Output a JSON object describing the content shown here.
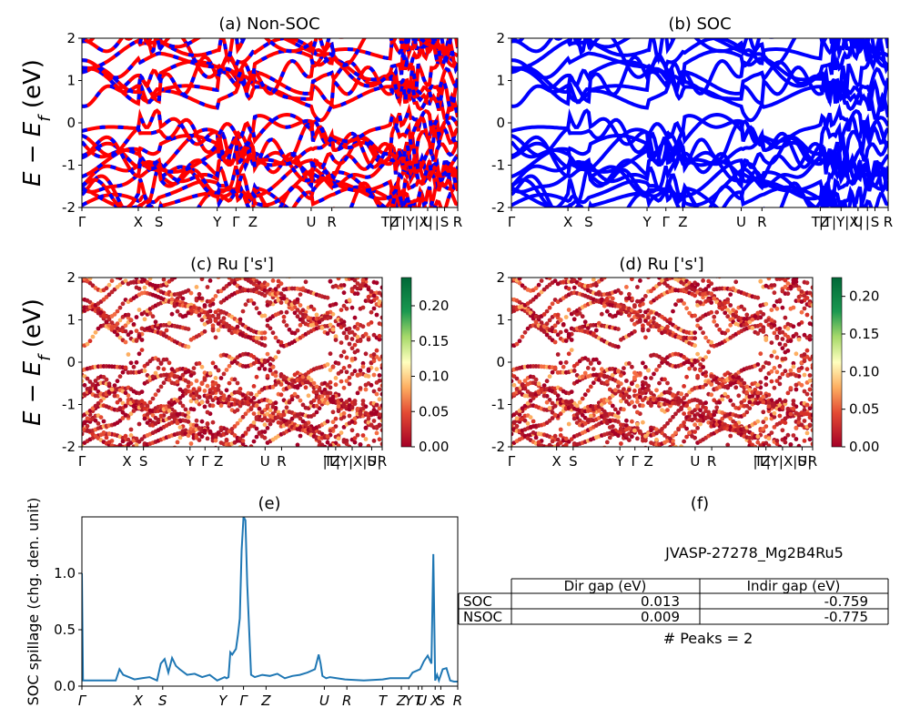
{
  "figure": {
    "ylabel_bands": "E − E_f (eV)",
    "ylabel_spillage": "SOC spillage (chg. den. unit)",
    "kpath_labels": [
      "Γ",
      "X",
      "S",
      "Y",
      "Γ",
      "Z",
      "U",
      "R",
      "T",
      "Z",
      "Y",
      "T",
      "U",
      "X",
      "S",
      "R"
    ],
    "kpath_positions": [
      0.0,
      0.15,
      0.205,
      0.36,
      0.41,
      0.455,
      0.61,
      0.665,
      0.82,
      0.845,
      0.865,
      0.875,
      0.89,
      0.925,
      0.945,
      1.0
    ],
    "top_tick_text": [
      "Γ",
      "X",
      "S",
      "Y",
      "Γ",
      "Z",
      "U",
      "R",
      "TZ",
      "|T|Y|X|",
      "U",
      "|",
      "S",
      "R"
    ],
    "top_tick_fracs": [
      0.0,
      0.15,
      0.205,
      0.36,
      0.41,
      0.455,
      0.61,
      0.665,
      0.82,
      0.875,
      0.92,
      0.945,
      0.965,
      1.0
    ],
    "mid_tick_text": [
      "Γ",
      "X",
      "S",
      "Y",
      "Γ",
      "Z",
      "U",
      "R",
      "T",
      "Z",
      "|T|Y|X|U|",
      "S",
      "R"
    ],
    "mid_tick_fracs": [
      0.0,
      0.15,
      0.205,
      0.36,
      0.41,
      0.455,
      0.61,
      0.665,
      0.82,
      0.845,
      0.9,
      0.965,
      1.0
    ],
    "bottom_tick_text": [
      "Γ",
      "X",
      "S",
      "Y",
      "Γ",
      "Z",
      "U",
      "R",
      "T",
      "Z",
      "Y",
      "T",
      "U",
      "X",
      "S",
      "R"
    ],
    "bottom_tick_fracs": [
      0.0,
      0.15,
      0.215,
      0.375,
      0.43,
      0.49,
      0.645,
      0.705,
      0.8,
      0.85,
      0.87,
      0.895,
      0.905,
      0.94,
      0.955,
      1.0
    ]
  },
  "chart_data": [
    {
      "id": "a",
      "type": "line",
      "title": "(a) Non-SOC",
      "ylim": [
        -2,
        2
      ],
      "yticks": [
        -2,
        -1,
        0,
        1,
        2
      ],
      "series_colors": [
        "#ff0000",
        "#0000ff"
      ],
      "dashed_overlay": true
    },
    {
      "id": "b",
      "type": "line",
      "title": "(b) SOC",
      "ylim": [
        -2,
        2
      ],
      "yticks": [
        -2,
        -1,
        0,
        1,
        2
      ],
      "series_colors": [
        "#0000ff"
      ]
    },
    {
      "id": "c",
      "type": "scatter",
      "title": "(c)  Ru ['s']",
      "ylim": [
        -2,
        2
      ],
      "yticks": [
        -2,
        -1,
        0,
        1,
        2
      ],
      "colorbar": {
        "min": 0.0,
        "max": 0.24,
        "ticks": [
          "0.00",
          "0.05",
          "0.10",
          "0.15",
          "0.20"
        ],
        "tick_values": [
          0.0,
          0.05,
          0.1,
          0.15,
          0.2
        ],
        "colormap": "RdYlGn"
      }
    },
    {
      "id": "d",
      "type": "scatter",
      "title": "(d) Ru ['s']",
      "ylim": [
        -2,
        2
      ],
      "yticks": [
        -2,
        -1,
        0,
        1,
        2
      ],
      "colorbar": {
        "min": 0.0,
        "max": 0.225,
        "ticks": [
          "0.00",
          "0.05",
          "0.10",
          "0.15",
          "0.20"
        ],
        "tick_values": [
          0.0,
          0.05,
          0.1,
          0.15,
          0.2
        ],
        "colormap": "RdYlGn"
      }
    },
    {
      "id": "e",
      "type": "line",
      "title": "(e)",
      "ylabel": "SOC spillage (chg. den. unit)",
      "ylim": [
        0.0,
        1.5
      ],
      "yticks": [
        "0.0",
        "0.5",
        "1.0"
      ],
      "ytick_values": [
        0.0,
        0.5,
        1.0
      ],
      "color": "#1f77b4",
      "x": [
        0.0,
        0.003,
        0.006,
        0.03,
        0.06,
        0.09,
        0.1,
        0.11,
        0.14,
        0.16,
        0.18,
        0.2,
        0.21,
        0.22,
        0.23,
        0.24,
        0.25,
        0.26,
        0.28,
        0.3,
        0.32,
        0.34,
        0.36,
        0.38,
        0.385,
        0.39,
        0.395,
        0.4,
        0.41,
        0.415,
        0.42,
        0.425,
        0.43,
        0.435,
        0.44,
        0.45,
        0.46,
        0.48,
        0.5,
        0.52,
        0.54,
        0.56,
        0.58,
        0.6,
        0.6,
        0.62,
        0.63,
        0.635,
        0.64,
        0.65,
        0.66,
        0.7,
        0.75,
        0.8,
        0.82,
        0.84,
        0.86,
        0.87,
        0.88,
        0.9,
        0.91,
        0.92,
        0.93,
        0.935,
        0.94,
        0.945,
        0.95,
        0.96,
        0.97,
        0.98,
        0.99,
        1.0
      ],
      "values": [
        1.0,
        0.05,
        0.05,
        0.05,
        0.05,
        0.05,
        0.15,
        0.1,
        0.06,
        0.07,
        0.08,
        0.05,
        0.2,
        0.24,
        0.12,
        0.25,
        0.18,
        0.15,
        0.1,
        0.11,
        0.08,
        0.1,
        0.05,
        0.08,
        0.07,
        0.08,
        0.3,
        0.28,
        0.33,
        0.45,
        0.6,
        1.2,
        1.5,
        1.47,
        0.9,
        0.1,
        0.08,
        0.1,
        0.09,
        0.11,
        0.07,
        0.09,
        0.1,
        0.12,
        0.12,
        0.15,
        0.28,
        0.2,
        0.09,
        0.07,
        0.08,
        0.06,
        0.05,
        0.06,
        0.07,
        0.07,
        0.07,
        0.07,
        0.12,
        0.15,
        0.22,
        0.27,
        0.2,
        1.17,
        0.05,
        0.1,
        0.05,
        0.15,
        0.16,
        0.05,
        0.04,
        0.04
      ]
    },
    {
      "id": "f",
      "type": "table",
      "title": "(f)",
      "material": "JVASP-27278_Mg2B4Ru5",
      "columns": [
        "Dir gap (eV)",
        "Indir gap (eV)"
      ],
      "rows": [
        {
          "label": "SOC",
          "values": [
            "0.013",
            "-0.759"
          ]
        },
        {
          "label": "NSOC",
          "values": [
            "0.009",
            "-0.775"
          ]
        }
      ],
      "footer": "# Peaks = 2"
    }
  ]
}
